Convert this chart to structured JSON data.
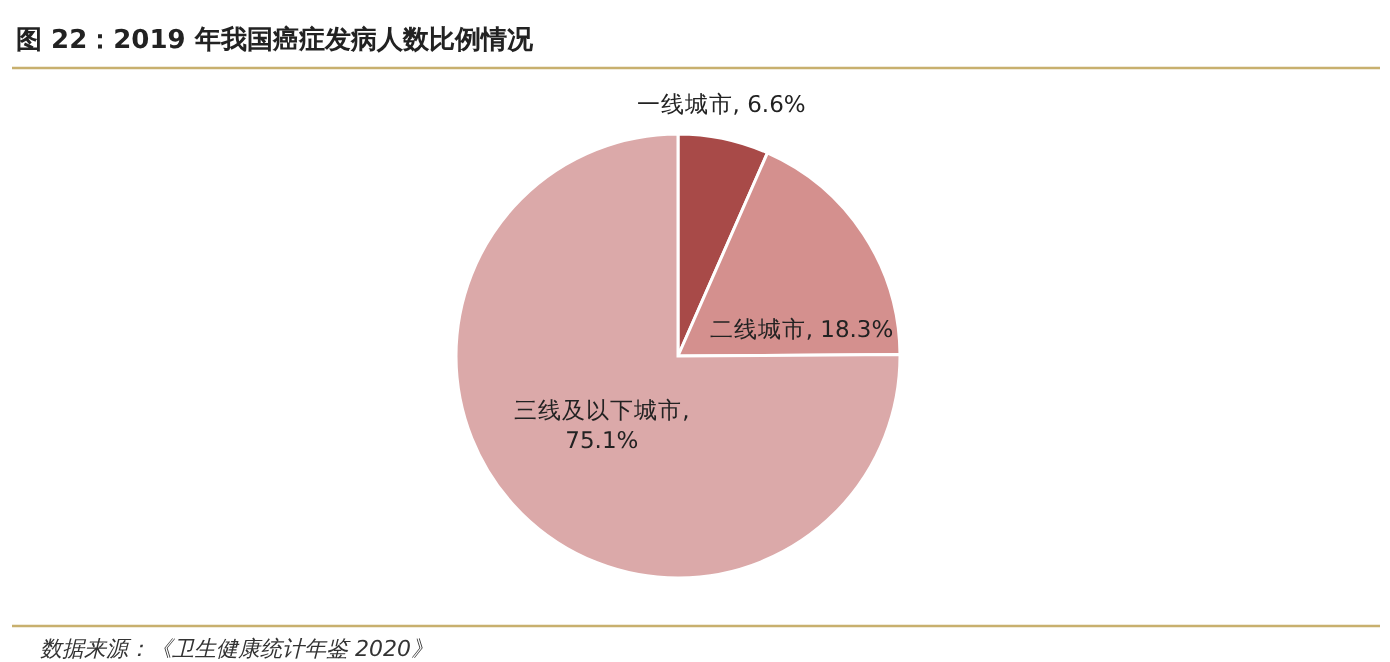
{
  "chart_data": {
    "type": "pie",
    "title": "图 22：2019 年我国癌症发病人数比例情况",
    "categories": [
      "一线城市",
      "二线城市",
      "三线及以下城市"
    ],
    "values": [
      6.6,
      18.3,
      75.1
    ],
    "colors": [
      "#a84a48",
      "#d4908e",
      "#dba9a9"
    ],
    "value_labels": [
      ", 6.6%",
      ", 18.3%",
      ", 75.1%"
    ],
    "annotations": [
      "数据来源：《卫生健康统计年鉴 2020》"
    ]
  }
}
